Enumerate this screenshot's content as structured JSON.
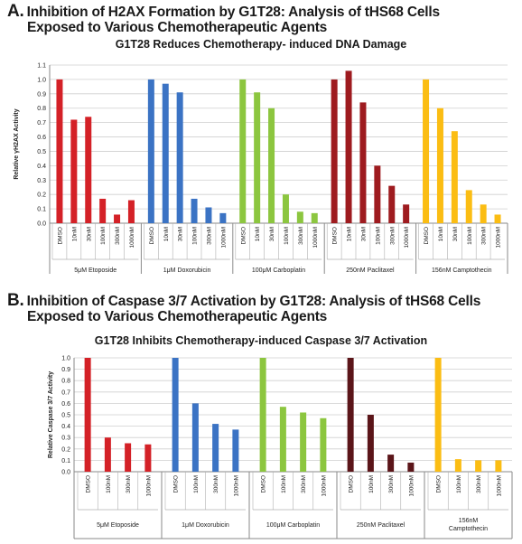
{
  "panel_a": {
    "letter": "A.",
    "heading_line1": "Inhibition of H2AX Formation by G1T28: Analysis of tHS68 Cells",
    "heading_line2": "Exposed to Various Chemotherapeutic Agents"
  },
  "panel_b": {
    "letter": "B.",
    "heading_line1": "Inhibition of Caspase 3/7 Activation by G1T28: Analysis of tHS68 Cells",
    "heading_line2": "Exposed to Various Chemotherapeutic Agents"
  },
  "chart_data": [
    {
      "type": "bar",
      "title": "G1T28 Reduces Chemotherapy- induced DNA Damage",
      "ylabel": "Relative γH2AX Activity",
      "xlabel": "",
      "ylim": [
        0,
        1.1
      ],
      "yticks": [
        "0.0",
        "0.1",
        "0.2",
        "0.3",
        "0.4",
        "0.5",
        "0.6",
        "0.7",
        "0.8",
        "0.9",
        "1.0",
        "1.1"
      ],
      "grid": true,
      "legend": "none",
      "groups": [
        {
          "name": "5μM Etoposide",
          "color": "#d42127",
          "categories": [
            "DMSO",
            "10nM",
            "30nM",
            "100nM",
            "300nM",
            "1000nM"
          ],
          "values": [
            1.0,
            0.72,
            0.74,
            0.17,
            0.06,
            0.16
          ]
        },
        {
          "name": "1μM Doxorubicin",
          "color": "#3b73c4",
          "categories": [
            "DMSO",
            "10nM",
            "30nM",
            "100nM",
            "300nM",
            "1000nM"
          ],
          "values": [
            1.0,
            0.97,
            0.91,
            0.17,
            0.11,
            0.07
          ]
        },
        {
          "name": "100μM Carboplatin",
          "color": "#8cc63f",
          "categories": [
            "DMSO",
            "10nM",
            "30nM",
            "100nM",
            "300nM",
            "1000nM"
          ],
          "values": [
            1.0,
            0.91,
            0.8,
            0.2,
            0.08,
            0.07
          ]
        },
        {
          "name": "250nM Paclitaxel",
          "color": "#9e1b1f",
          "categories": [
            "DMSO",
            "10nM",
            "30nM",
            "100nM",
            "300nM",
            "1000nM"
          ],
          "values": [
            1.0,
            1.06,
            0.84,
            0.4,
            0.26,
            0.13
          ]
        },
        {
          "name": "156nM Camptothecin",
          "color": "#fbbd13",
          "categories": [
            "DMSO",
            "10nM",
            "30nM",
            "100nM",
            "300nM",
            "1000nM"
          ],
          "values": [
            1.0,
            0.8,
            0.64,
            0.23,
            0.13,
            0.06
          ]
        }
      ]
    },
    {
      "type": "bar",
      "title": "G1T28 Inhibits Chemotherapy-induced Caspase 3/7 Activation",
      "ylabel": "Relative Caspase 3/7 Activity",
      "xlabel": "",
      "ylim": [
        0,
        1.0
      ],
      "yticks": [
        "0.0",
        "0.1",
        "0.2",
        "0.3",
        "0.4",
        "0.5",
        "0.6",
        "0.7",
        "0.8",
        "0.9",
        "1.0"
      ],
      "grid": true,
      "legend": "none",
      "groups": [
        {
          "name": "5μM Etoposide",
          "color": "#d42127",
          "categories": [
            "DMSO",
            "100nM",
            "300nM",
            "1000nM"
          ],
          "values": [
            1.0,
            0.3,
            0.25,
            0.24
          ]
        },
        {
          "name": "1μM Doxorubicin",
          "color": "#3b73c4",
          "categories": [
            "DMSO",
            "100nM",
            "300nM",
            "1000nM"
          ],
          "values": [
            1.0,
            0.6,
            0.42,
            0.37
          ]
        },
        {
          "name": "100μM Carboplatin",
          "color": "#8cc63f",
          "categories": [
            "DMSO",
            "100nM",
            "300nM",
            "1000nM"
          ],
          "values": [
            1.0,
            0.57,
            0.52,
            0.47
          ]
        },
        {
          "name": "250nM Paclitaxel",
          "color": "#5b1519",
          "categories": [
            "DMSO",
            "100nM",
            "300nM",
            "1000nM"
          ],
          "values": [
            1.0,
            0.5,
            0.15,
            0.08
          ]
        },
        {
          "name": "156nM Camptothecin",
          "name_lines": [
            "156nM",
            "Camptothecin"
          ],
          "color": "#fbbd13",
          "categories": [
            "DMSO",
            "100nM",
            "300nM",
            "1000nM"
          ],
          "values": [
            1.0,
            0.11,
            0.1,
            0.1
          ]
        }
      ]
    }
  ]
}
